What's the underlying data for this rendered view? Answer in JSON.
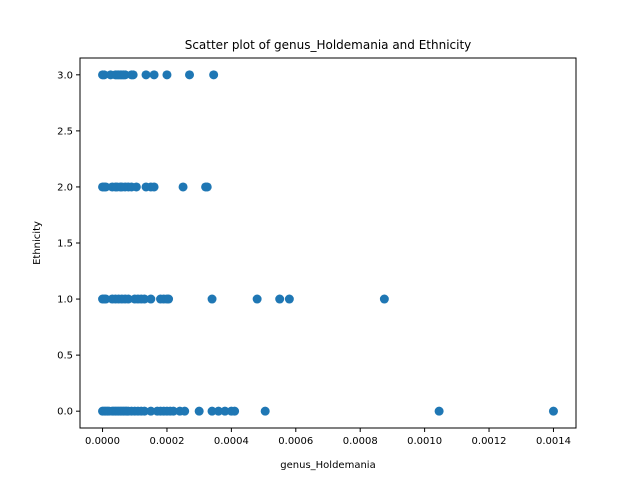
{
  "chart_data": {
    "type": "scatter",
    "title": "Scatter plot of genus_Holdemania and Ethnicity",
    "xlabel": "genus_Holdemania",
    "ylabel": "Ethnicity",
    "xlim": [
      -7e-05,
      0.00147
    ],
    "ylim": [
      -0.15,
      3.15
    ],
    "x_ticks": [
      0.0,
      0.0002,
      0.0004,
      0.0006,
      0.0008,
      0.001,
      0.0012,
      0.0014
    ],
    "x_tick_labels": [
      "0.0000",
      "0.0002",
      "0.0004",
      "0.0006",
      "0.0008",
      "0.0010",
      "0.0012",
      "0.0014"
    ],
    "y_ticks": [
      0.0,
      0.5,
      1.0,
      1.5,
      2.0,
      2.5,
      3.0
    ],
    "y_tick_labels": [
      "0.0",
      "0.5",
      "1.0",
      "1.5",
      "2.0",
      "2.5",
      "3.0"
    ],
    "grid": false,
    "marker_color": "#1f77b4",
    "series": [
      {
        "points": [
          [
            0.0,
            3
          ],
          [
            5e-06,
            3
          ],
          [
            2.5e-05,
            3
          ],
          [
            4e-05,
            3
          ],
          [
            4.5e-05,
            3
          ],
          [
            5e-05,
            3
          ],
          [
            5.5e-05,
            3
          ],
          [
            6e-05,
            3
          ],
          [
            6.5e-05,
            3
          ],
          [
            7e-05,
            3
          ],
          [
            9e-05,
            3
          ],
          [
            9.5e-05,
            3
          ],
          [
            0.000135,
            3
          ],
          [
            0.00016,
            3
          ],
          [
            0.0002,
            3
          ],
          [
            0.00027,
            3
          ],
          [
            0.000345,
            3
          ],
          [
            0.0,
            2
          ],
          [
            5e-06,
            2
          ],
          [
            1e-05,
            2
          ],
          [
            3e-05,
            2
          ],
          [
            4e-05,
            2
          ],
          [
            4.5e-05,
            2
          ],
          [
            5.5e-05,
            2
          ],
          [
            6e-05,
            2
          ],
          [
            7e-05,
            2
          ],
          [
            8e-05,
            2
          ],
          [
            9e-05,
            2
          ],
          [
            0.000105,
            2
          ],
          [
            0.000135,
            2
          ],
          [
            0.00015,
            2
          ],
          [
            0.00016,
            2
          ],
          [
            0.00025,
            2
          ],
          [
            0.00032,
            2
          ],
          [
            0.000325,
            2
          ],
          [
            0.0,
            1
          ],
          [
            5e-06,
            1
          ],
          [
            1e-05,
            1
          ],
          [
            3e-05,
            1
          ],
          [
            4e-05,
            1
          ],
          [
            5e-05,
            1
          ],
          [
            6e-05,
            1
          ],
          [
            7e-05,
            1
          ],
          [
            8e-05,
            1
          ],
          [
            0.0001,
            1
          ],
          [
            0.00011,
            1
          ],
          [
            0.00012,
            1
          ],
          [
            0.00013,
            1
          ],
          [
            0.00015,
            1
          ],
          [
            0.00018,
            1
          ],
          [
            0.00019,
            1
          ],
          [
            0.0002,
            1
          ],
          [
            0.000205,
            1
          ],
          [
            0.00034,
            1
          ],
          [
            0.00048,
            1
          ],
          [
            0.00055,
            1
          ],
          [
            0.00058,
            1
          ],
          [
            0.000875,
            1
          ],
          [
            0.0,
            0
          ],
          [
            5e-06,
            0
          ],
          [
            1e-05,
            0
          ],
          [
            1.5e-05,
            0
          ],
          [
            2e-05,
            0
          ],
          [
            3e-05,
            0
          ],
          [
            3.5e-05,
            0
          ],
          [
            4e-05,
            0
          ],
          [
            4.5e-05,
            0
          ],
          [
            5e-05,
            0
          ],
          [
            5.5e-05,
            0
          ],
          [
            6e-05,
            0
          ],
          [
            6.5e-05,
            0
          ],
          [
            7e-05,
            0
          ],
          [
            7.5e-05,
            0
          ],
          [
            8e-05,
            0
          ],
          [
            9e-05,
            0
          ],
          [
            0.0001,
            0
          ],
          [
            0.00011,
            0
          ],
          [
            0.00012,
            0
          ],
          [
            0.00013,
            0
          ],
          [
            0.00015,
            0
          ],
          [
            0.00017,
            0
          ],
          [
            0.00018,
            0
          ],
          [
            0.00019,
            0
          ],
          [
            0.0002,
            0
          ],
          [
            0.00021,
            0
          ],
          [
            0.00022,
            0
          ],
          [
            0.00024,
            0
          ],
          [
            0.000255,
            0
          ],
          [
            0.0003,
            0
          ],
          [
            0.00034,
            0
          ],
          [
            0.00036,
            0
          ],
          [
            0.00038,
            0
          ],
          [
            0.0004,
            0
          ],
          [
            0.00041,
            0
          ],
          [
            0.000505,
            0
          ],
          [
            0.001045,
            0
          ],
          [
            0.0014,
            0
          ]
        ]
      }
    ]
  }
}
